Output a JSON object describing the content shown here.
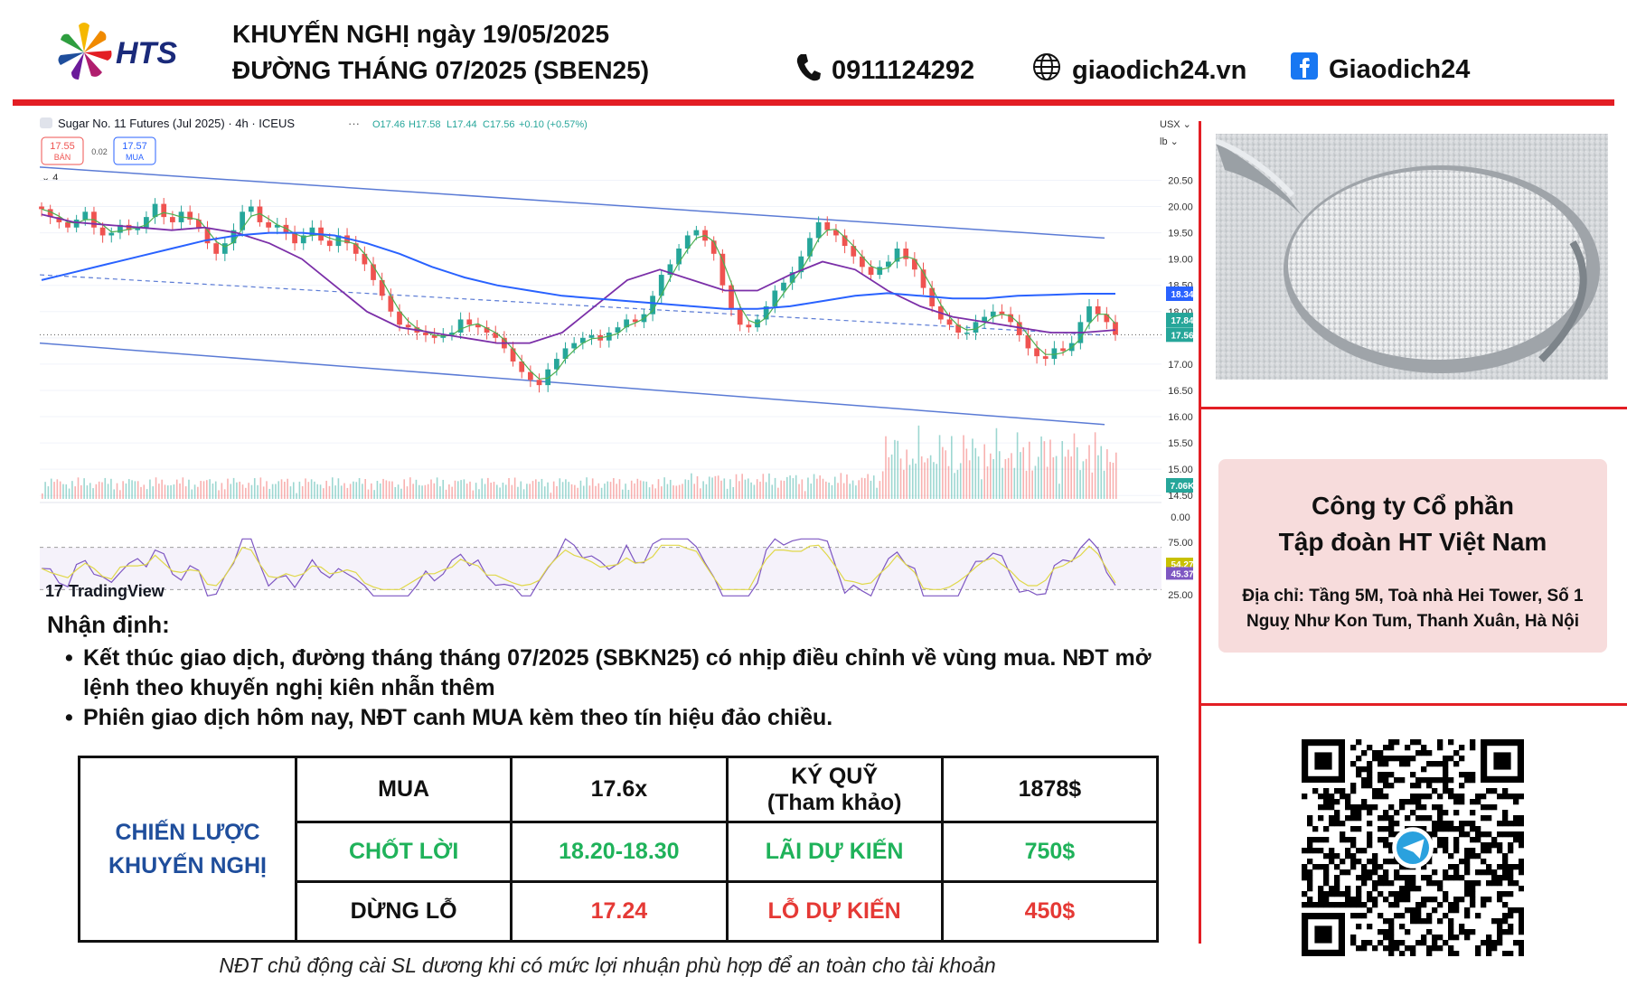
{
  "header": {
    "brand": "HTS",
    "title_line1": "KHUYẾN NGHỊ ngày 19/05/2025",
    "title_line2": "ĐƯỜNG THÁNG 07/2025 (SBEN25)",
    "phone": "0911124292",
    "website": "giaodich24.vn",
    "facebook": "Giaodich24",
    "phone_icon": "phone-icon",
    "globe_icon": "globe-icon",
    "facebook_icon": "facebook-icon"
  },
  "colors": {
    "accent_red": "#e31e24",
    "brand_blue": "#1f4e9c",
    "profit_green": "#1fb25a",
    "loss_red": "#e53935",
    "tv_up": "#26a69a",
    "tv_down": "#ef5350",
    "ma_blue": "#2962ff",
    "ma_purple": "#7b2fa8",
    "channel": "#5b7bd5"
  },
  "chart_data": {
    "type": "candlestick",
    "symbol_text": "Sugar No. 11 Futures (Jul 2025) · 4h · ICEUS",
    "ohlc_text": {
      "o": "O17.46",
      "h": "H17.58",
      "l": "L17.44",
      "c": "C17.56",
      "chg": "+0.10 (+0.57%)"
    },
    "sell_box": {
      "price": "17.55",
      "label": "BÁN"
    },
    "spread": "0.02",
    "buy_box": {
      "price": "17.57",
      "label": "MUA"
    },
    "indicators_count": "4",
    "currency": "USX",
    "unit": "lb",
    "price_axis": [
      "20.50",
      "20.00",
      "19.50",
      "19.00",
      "18.50",
      "18.00",
      "17.50",
      "17.00",
      "16.50",
      "16.00",
      "15.50",
      "15.00",
      "14.50"
    ],
    "ylim": [
      14.4,
      20.8
    ],
    "price_labels": [
      {
        "value": 18.34,
        "text": "18.34",
        "color": "#2962ff"
      },
      {
        "value": 17.84,
        "text": "17.84",
        "color": "#26a69a"
      },
      {
        "value": 17.56,
        "text": "17.56",
        "color": "#26a69a"
      }
    ],
    "volume_label": "7.06K",
    "volume_axis_zero": "0.00",
    "rsi": {
      "axis": [
        "75.00",
        "25.00"
      ],
      "levels": [
        70,
        30
      ],
      "labels": [
        {
          "value": 54.27,
          "text": "54.27",
          "color": "#c8c000"
        },
        {
          "value": 45.37,
          "text": "45.37",
          "color": "#7e57c2"
        }
      ]
    },
    "price_path": [
      19.95,
      19.8,
      19.7,
      19.6,
      19.75,
      19.9,
      19.6,
      19.45,
      19.5,
      19.65,
      19.55,
      19.6,
      19.8,
      20.05,
      19.8,
      19.7,
      19.9,
      19.75,
      19.6,
      19.3,
      19.1,
      19.3,
      19.55,
      19.9,
      20.0,
      19.7,
      19.6,
      19.65,
      19.5,
      19.3,
      19.45,
      19.6,
      19.35,
      19.25,
      19.45,
      19.3,
      19.1,
      18.9,
      18.6,
      18.3,
      18.0,
      17.75,
      17.7,
      17.6,
      17.55,
      17.5,
      17.55,
      17.6,
      17.85,
      17.75,
      17.7,
      17.6,
      17.5,
      17.3,
      17.05,
      16.85,
      16.7,
      16.6,
      16.9,
      17.1,
      17.3,
      17.4,
      17.5,
      17.55,
      17.45,
      17.6,
      17.7,
      17.85,
      17.8,
      17.95,
      18.3,
      18.7,
      18.9,
      19.2,
      19.45,
      19.55,
      19.35,
      19.1,
      18.5,
      18.05,
      17.75,
      17.7,
      17.85,
      18.1,
      18.4,
      18.55,
      18.75,
      19.05,
      19.4,
      19.7,
      19.55,
      19.45,
      19.25,
      19.05,
      18.85,
      18.7,
      18.85,
      18.95,
      19.2,
      19.0,
      18.8,
      18.45,
      18.1,
      17.85,
      17.75,
      17.6,
      17.6,
      17.8,
      17.9,
      18.0,
      17.95,
      17.8,
      17.55,
      17.3,
      17.15,
      17.1,
      17.3,
      17.25,
      17.4,
      17.8,
      18.1,
      17.95,
      17.8,
      17.56
    ],
    "sma_blue": [
      18.6,
      18.75,
      18.9,
      19.05,
      19.2,
      19.35,
      19.45,
      19.5,
      19.5,
      19.45,
      19.3,
      19.1,
      18.85,
      18.65,
      18.5,
      18.4,
      18.3,
      18.25,
      18.2,
      18.15,
      18.1,
      18.05,
      18.05,
      18.1,
      18.2,
      18.3,
      18.35,
      18.3,
      18.25,
      18.25,
      18.3,
      18.32,
      18.34,
      18.34
    ],
    "sma_purple": [
      19.85,
      19.7,
      19.65,
      19.6,
      19.55,
      19.6,
      19.5,
      19.3,
      19.0,
      18.5,
      18.0,
      17.7,
      17.6,
      17.5,
      17.4,
      17.4,
      17.6,
      18.1,
      18.6,
      18.8,
      18.6,
      18.4,
      18.4,
      18.7,
      18.95,
      18.8,
      18.4,
      18.1,
      17.9,
      17.8,
      17.7,
      17.6,
      17.6,
      17.65
    ],
    "channel": {
      "upper": [
        [
          0,
          20.75
        ],
        [
          1,
          19.4
        ]
      ],
      "lower": [
        [
          0,
          17.4
        ],
        [
          1,
          15.85
        ]
      ],
      "mid_dashed": [
        [
          0,
          18.7
        ],
        [
          1,
          17.55
        ]
      ]
    }
  },
  "side": {
    "image_alt": "Sugar on a spoon",
    "company_line1": "Công ty Cổ phần",
    "company_line2": "Tập đoàn HT Việt Nam",
    "address": "Địa chỉ: Tầng 5M, Toà nhà Hei Tower, Số 1 Nguỵ Như Kon Tum, Thanh Xuân, Hà Nội",
    "qr_icon": "telegram-icon"
  },
  "analysis": {
    "title": "Nhận định:",
    "bullets": [
      "Kết thúc giao dịch, đường tháng tháng 07/2025 (SBKN25) có nhịp điều chỉnh về vùng mua. NĐT mở lệnh theo khuyến nghị kiên nhẫn thêm",
      "Phiên giao dịch hôm nay, NĐT canh MUA kèm theo tín hiệu đảo chiều."
    ]
  },
  "strategy": {
    "label_line1": "CHIẾN LƯỢC",
    "label_line2": "KHUYẾN NGHỊ",
    "action": "MUA",
    "entry": "17.6x",
    "margin_line1": "KÝ QUỸ",
    "margin_line2": "(Tham khảo)",
    "margin_value": "1878$",
    "tp_label": "CHỐT LỜI",
    "tp_value": "18.20-18.30",
    "profit_label": "LÃI DỰ KIẾN",
    "profit_value": "750$",
    "sl_label": "DỪNG LỖ",
    "sl_value": "17.24",
    "loss_label": "LỖ DỰ KIẾN",
    "loss_value": "450$"
  },
  "footer_note": "NĐT chủ động cài SL dương khi có mức lợi nhuận phù hợp để an toàn cho tài khoản",
  "tradingview": "TradingView"
}
